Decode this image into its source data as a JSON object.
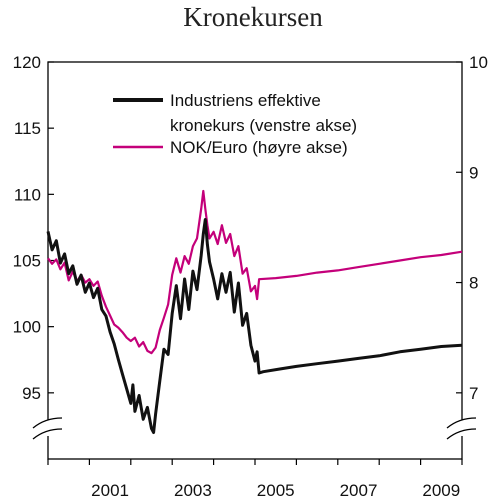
{
  "chart_data": {
    "type": "line",
    "title": "Kronekursen",
    "x_ticks": [
      "2001",
      "2003",
      "2005",
      "2007",
      "2009"
    ],
    "xlim": [
      2000.0,
      2010.0
    ],
    "left_axis": {
      "ylim": [
        90,
        120
      ],
      "ticks": [
        95,
        100,
        105,
        110,
        115,
        120
      ],
      "broken": true
    },
    "right_axis": {
      "ylim": [
        6.4,
        10
      ],
      "ticks": [
        7,
        8,
        9,
        10
      ],
      "broken": true
    },
    "legend_placement": "top",
    "series": [
      {
        "name": "Industriens effektive kronekurs (venstre akse)",
        "axis": "left",
        "color": "#111111",
        "points": [
          [
            2000.0,
            107.2
          ],
          [
            2000.1,
            105.8
          ],
          [
            2000.2,
            106.5
          ],
          [
            2000.3,
            104.8
          ],
          [
            2000.4,
            105.5
          ],
          [
            2000.5,
            104.0
          ],
          [
            2000.6,
            104.6
          ],
          [
            2000.7,
            103.2
          ],
          [
            2000.8,
            103.9
          ],
          [
            2000.9,
            102.6
          ],
          [
            2001.0,
            103.3
          ],
          [
            2001.1,
            102.2
          ],
          [
            2001.2,
            102.9
          ],
          [
            2001.3,
            101.3
          ],
          [
            2001.4,
            100.8
          ],
          [
            2001.5,
            99.6
          ],
          [
            2001.6,
            98.7
          ],
          [
            2001.7,
            97.5
          ],
          [
            2001.8,
            96.4
          ],
          [
            2001.9,
            95.3
          ],
          [
            2002.0,
            94.2
          ],
          [
            2002.05,
            95.6
          ],
          [
            2002.1,
            93.6
          ],
          [
            2002.2,
            94.8
          ],
          [
            2002.3,
            93.0
          ],
          [
            2002.4,
            93.9
          ],
          [
            2002.5,
            92.3
          ],
          [
            2002.55,
            92.0
          ],
          [
            2002.6,
            93.4
          ],
          [
            2002.7,
            95.9
          ],
          [
            2002.8,
            98.3
          ],
          [
            2002.9,
            97.9
          ],
          [
            2003.0,
            101.0
          ],
          [
            2003.1,
            103.1
          ],
          [
            2003.2,
            100.6
          ],
          [
            2003.3,
            103.6
          ],
          [
            2003.4,
            101.3
          ],
          [
            2003.5,
            104.2
          ],
          [
            2003.6,
            102.8
          ],
          [
            2003.7,
            105.4
          ],
          [
            2003.75,
            107.0
          ],
          [
            2003.8,
            108.1
          ],
          [
            2003.85,
            106.2
          ],
          [
            2003.9,
            104.9
          ],
          [
            2004.0,
            103.6
          ],
          [
            2004.1,
            102.1
          ],
          [
            2004.2,
            104.0
          ],
          [
            2004.3,
            102.6
          ],
          [
            2004.4,
            104.1
          ],
          [
            2004.5,
            101.1
          ],
          [
            2004.6,
            103.3
          ],
          [
            2004.7,
            100.1
          ],
          [
            2004.8,
            101.0
          ],
          [
            2004.9,
            98.6
          ],
          [
            2005.0,
            97.4
          ],
          [
            2005.05,
            98.1
          ],
          [
            2005.1,
            96.5
          ],
          [
            2005.2,
            96.6
          ],
          [
            2005.6,
            96.8
          ],
          [
            2006.0,
            97.0
          ],
          [
            2006.5,
            97.2
          ],
          [
            2007.0,
            97.4
          ],
          [
            2007.5,
            97.6
          ],
          [
            2008.0,
            97.8
          ],
          [
            2008.5,
            98.1
          ],
          [
            2009.0,
            98.3
          ],
          [
            2009.5,
            98.5
          ],
          [
            2010.0,
            98.6
          ]
        ]
      },
      {
        "name": "NOK/Euro (høyre akse)",
        "axis": "right",
        "color": "#c4007a",
        "points": [
          [
            2000.0,
            8.22
          ],
          [
            2000.1,
            8.17
          ],
          [
            2000.2,
            8.21
          ],
          [
            2000.3,
            8.12
          ],
          [
            2000.4,
            8.18
          ],
          [
            2000.5,
            8.02
          ],
          [
            2000.6,
            8.1
          ],
          [
            2000.7,
            8.01
          ],
          [
            2000.8,
            8.07
          ],
          [
            2000.9,
            8.0
          ],
          [
            2001.0,
            8.03
          ],
          [
            2001.1,
            7.97
          ],
          [
            2001.2,
            8.01
          ],
          [
            2001.3,
            7.88
          ],
          [
            2001.4,
            7.78
          ],
          [
            2001.5,
            7.7
          ],
          [
            2001.6,
            7.62
          ],
          [
            2001.7,
            7.59
          ],
          [
            2001.8,
            7.55
          ],
          [
            2001.9,
            7.5
          ],
          [
            2002.0,
            7.47
          ],
          [
            2002.1,
            7.5
          ],
          [
            2002.2,
            7.42
          ],
          [
            2002.3,
            7.46
          ],
          [
            2002.4,
            7.38
          ],
          [
            2002.5,
            7.36
          ],
          [
            2002.6,
            7.41
          ],
          [
            2002.7,
            7.57
          ],
          [
            2002.8,
            7.68
          ],
          [
            2002.9,
            7.8
          ],
          [
            2003.0,
            8.07
          ],
          [
            2003.1,
            8.22
          ],
          [
            2003.2,
            8.09
          ],
          [
            2003.3,
            8.24
          ],
          [
            2003.4,
            8.17
          ],
          [
            2003.5,
            8.33
          ],
          [
            2003.6,
            8.4
          ],
          [
            2003.7,
            8.67
          ],
          [
            2003.75,
            8.83
          ],
          [
            2003.8,
            8.67
          ],
          [
            2003.85,
            8.52
          ],
          [
            2003.9,
            8.4
          ],
          [
            2004.0,
            8.46
          ],
          [
            2004.1,
            8.35
          ],
          [
            2004.2,
            8.52
          ],
          [
            2004.3,
            8.36
          ],
          [
            2004.4,
            8.44
          ],
          [
            2004.5,
            8.24
          ],
          [
            2004.6,
            8.33
          ],
          [
            2004.7,
            8.08
          ],
          [
            2004.8,
            8.13
          ],
          [
            2004.9,
            7.92
          ],
          [
            2005.0,
            7.97
          ],
          [
            2005.05,
            7.85
          ],
          [
            2005.1,
            8.03
          ],
          [
            2005.5,
            8.04
          ],
          [
            2006.0,
            8.06
          ],
          [
            2006.5,
            8.09
          ],
          [
            2007.0,
            8.11
          ],
          [
            2007.5,
            8.14
          ],
          [
            2008.0,
            8.17
          ],
          [
            2008.5,
            8.2
          ],
          [
            2009.0,
            8.23
          ],
          [
            2009.5,
            8.25
          ],
          [
            2010.0,
            8.28
          ]
        ]
      }
    ]
  }
}
